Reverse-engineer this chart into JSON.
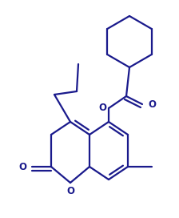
{
  "bg_color": "#ffffff",
  "line_color": "#1a1a8c",
  "line_width": 1.6,
  "font_size": 8.5,
  "figsize": [
    2.24,
    2.72
  ],
  "dpi": 100,
  "xlim": [
    0,
    224
  ],
  "ylim": [
    0,
    272
  ]
}
